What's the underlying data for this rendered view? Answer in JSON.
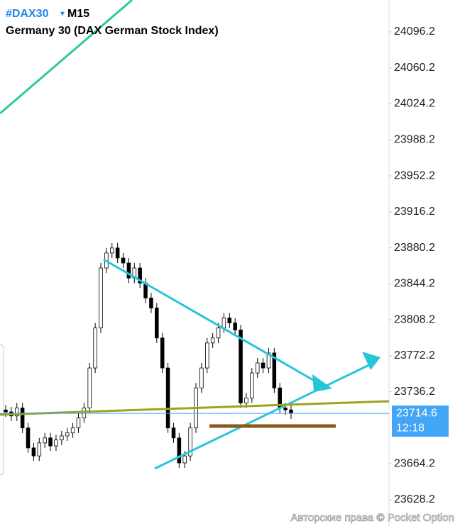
{
  "header": {
    "symbol": "#DAX30",
    "timeframe": "M15",
    "instrument": "Germany 30 (DAX German Stock Index)"
  },
  "watermark": "Авторские права © Pocket Option",
  "chart_data": {
    "type": "candlestick",
    "open": [
      23718,
      23716,
      23712,
      23720,
      23700,
      23680,
      23672,
      23685,
      23690,
      23682,
      23688,
      23692,
      23695,
      23700,
      23710,
      23720,
      23760,
      23800,
      23860,
      23875,
      23880,
      23870,
      23865,
      23850,
      23860,
      23845,
      23830,
      23820,
      23790,
      23760,
      23700,
      23690,
      23665,
      23672,
      23700,
      23740,
      23760,
      23785,
      23790,
      23800,
      23810,
      23805,
      23798,
      23725,
      23730,
      23755,
      23765,
      23760,
      23775,
      23740,
      23720,
      23718
    ],
    "high": [
      23723,
      23721,
      23725,
      23725,
      23705,
      23685,
      23690,
      23695,
      23695,
      23693,
      23697,
      23700,
      23705,
      23715,
      23725,
      23765,
      23805,
      23865,
      23880,
      23885,
      23885,
      23875,
      23870,
      23865,
      23865,
      23850,
      23835,
      23825,
      23795,
      23765,
      23705,
      23695,
      23677,
      23705,
      23745,
      23765,
      23790,
      23795,
      23805,
      23815,
      23815,
      23810,
      23803,
      23735,
      23760,
      23770,
      23770,
      23780,
      23780,
      23745,
      23725,
      23723
    ],
    "low": [
      23711,
      23707,
      23707,
      23695,
      23675,
      23667,
      23667,
      23680,
      23677,
      23677,
      23683,
      23687,
      23690,
      23695,
      23705,
      23715,
      23755,
      23795,
      23855,
      23870,
      23865,
      23860,
      23845,
      23845,
      23840,
      23825,
      23815,
      23785,
      23755,
      23695,
      23685,
      23660,
      23660,
      23667,
      23695,
      23735,
      23755,
      23780,
      23785,
      23795,
      23800,
      23793,
      23720,
      23720,
      23725,
      23750,
      23755,
      23755,
      23735,
      23715,
      23713,
      23709
    ],
    "close": [
      23716,
      23712,
      23720,
      23700,
      23680,
      23672,
      23685,
      23690,
      23682,
      23688,
      23692,
      23695,
      23700,
      23710,
      23720,
      23760,
      23800,
      23860,
      23875,
      23880,
      23870,
      23865,
      23850,
      23860,
      23845,
      23830,
      23820,
      23790,
      23760,
      23700,
      23690,
      23665,
      23672,
      23700,
      23740,
      23760,
      23785,
      23790,
      23800,
      23810,
      23805,
      23798,
      23725,
      23730,
      23755,
      23765,
      23760,
      23775,
      23740,
      23720,
      23718,
      23714.6
    ],
    "up_color": "#ffffff",
    "down_color": "#000000",
    "current_price": 23714.6,
    "current_price_label": "23714.6",
    "timer": "12:18",
    "price_color": "#42a5f5",
    "ylim": [
      23601.9,
      24128.1
    ],
    "yticks": [
      24096.2,
      24060.2,
      24024.2,
      23988.2,
      23952.2,
      23916.2,
      23880.2,
      23844.2,
      23808.2,
      23772.2,
      23736.2,
      23664.2,
      23628.2
    ]
  }
}
